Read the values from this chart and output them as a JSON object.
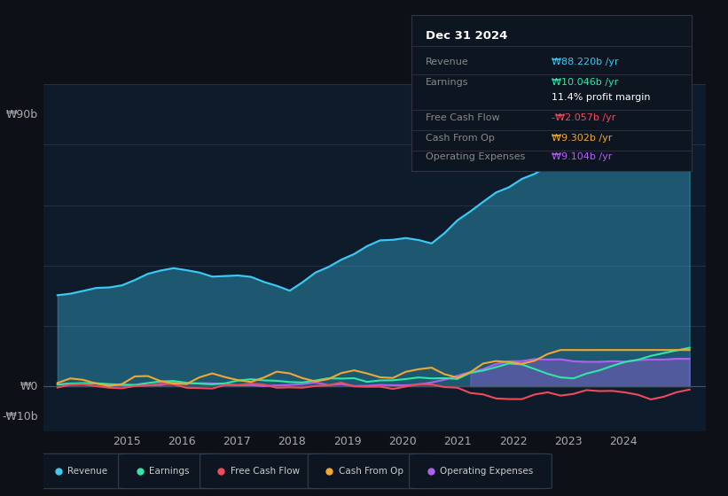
{
  "bg_color": "#0d1117",
  "plot_bg_color": "#0d1b2a",
  "title": "Dec 31 2024",
  "info_box_rows": [
    {
      "label": "Revenue",
      "value": "₩88.220b /yr",
      "color": "#3bc9f5"
    },
    {
      "label": "Earnings",
      "value": "₩10.046b /yr",
      "color": "#2ee8a5"
    },
    {
      "label": "",
      "value": "11.4% profit margin",
      "color": "#ffffff"
    },
    {
      "label": "Free Cash Flow",
      "value": "-₩2.057b /yr",
      "color": "#f04a5a"
    },
    {
      "label": "Cash From Op",
      "value": "₩9.302b /yr",
      "color": "#f0a830"
    },
    {
      "label": "Operating Expenses",
      "value": "₩9.104b /yr",
      "color": "#b060f0"
    }
  ],
  "ylim": [
    -15,
    100
  ],
  "ytick_labels": [
    "₩90b",
    "₩0",
    "-₩10b"
  ],
  "ytick_values": [
    90,
    0,
    -10
  ],
  "xlim_start": 2013.5,
  "xlim_end": 2025.5,
  "xticks": [
    2015,
    2016,
    2017,
    2018,
    2019,
    2020,
    2021,
    2022,
    2023,
    2024
  ],
  "grid_color": "#253040",
  "colors": {
    "revenue": "#3bc9f5",
    "earnings": "#2ee8a5",
    "free_cash_flow": "#f04a5a",
    "cash_from_op": "#f0a830",
    "op_expenses": "#b060f0"
  },
  "legend": [
    {
      "label": "Revenue",
      "color": "#3bc9f5"
    },
    {
      "label": "Earnings",
      "color": "#2ee8a5"
    },
    {
      "label": "Free Cash Flow",
      "color": "#f04a5a"
    },
    {
      "label": "Cash From Op",
      "color": "#f0a830"
    },
    {
      "label": "Operating Expenses",
      "color": "#b060f0"
    }
  ]
}
